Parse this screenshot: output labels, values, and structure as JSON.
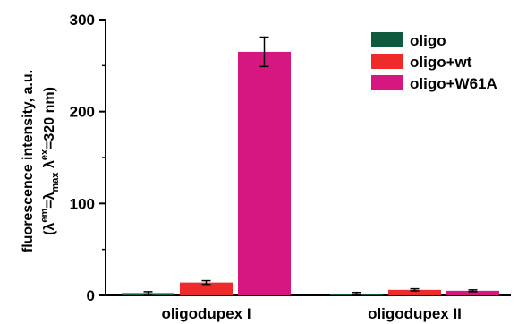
{
  "chart_data": {
    "type": "bar",
    "categories": [
      "oligodupex I",
      "oligodupex II"
    ],
    "series": [
      {
        "name": "oligo",
        "color": "#0e5a3c",
        "values": [
          2.5,
          2
        ],
        "errors": [
          1.5,
          1.2
        ]
      },
      {
        "name": "oligo+wt",
        "color": "#ee2a2a",
        "values": [
          14,
          6
        ],
        "errors": [
          2,
          1.2
        ]
      },
      {
        "name": "oligo+W61A",
        "color": "#d6177f",
        "values": [
          265,
          5
        ],
        "errors": [
          16,
          1
        ]
      }
    ],
    "ylabel_line1": "fluorescence intensity, a.u.",
    "ylabel_line2": "(λ em=λ max λ ex=320 nm)",
    "ylim": [
      0,
      300
    ],
    "yticks": [
      "0",
      "100",
      "200",
      "300"
    ],
    "legend_position": "top-right",
    "grid": false
  }
}
